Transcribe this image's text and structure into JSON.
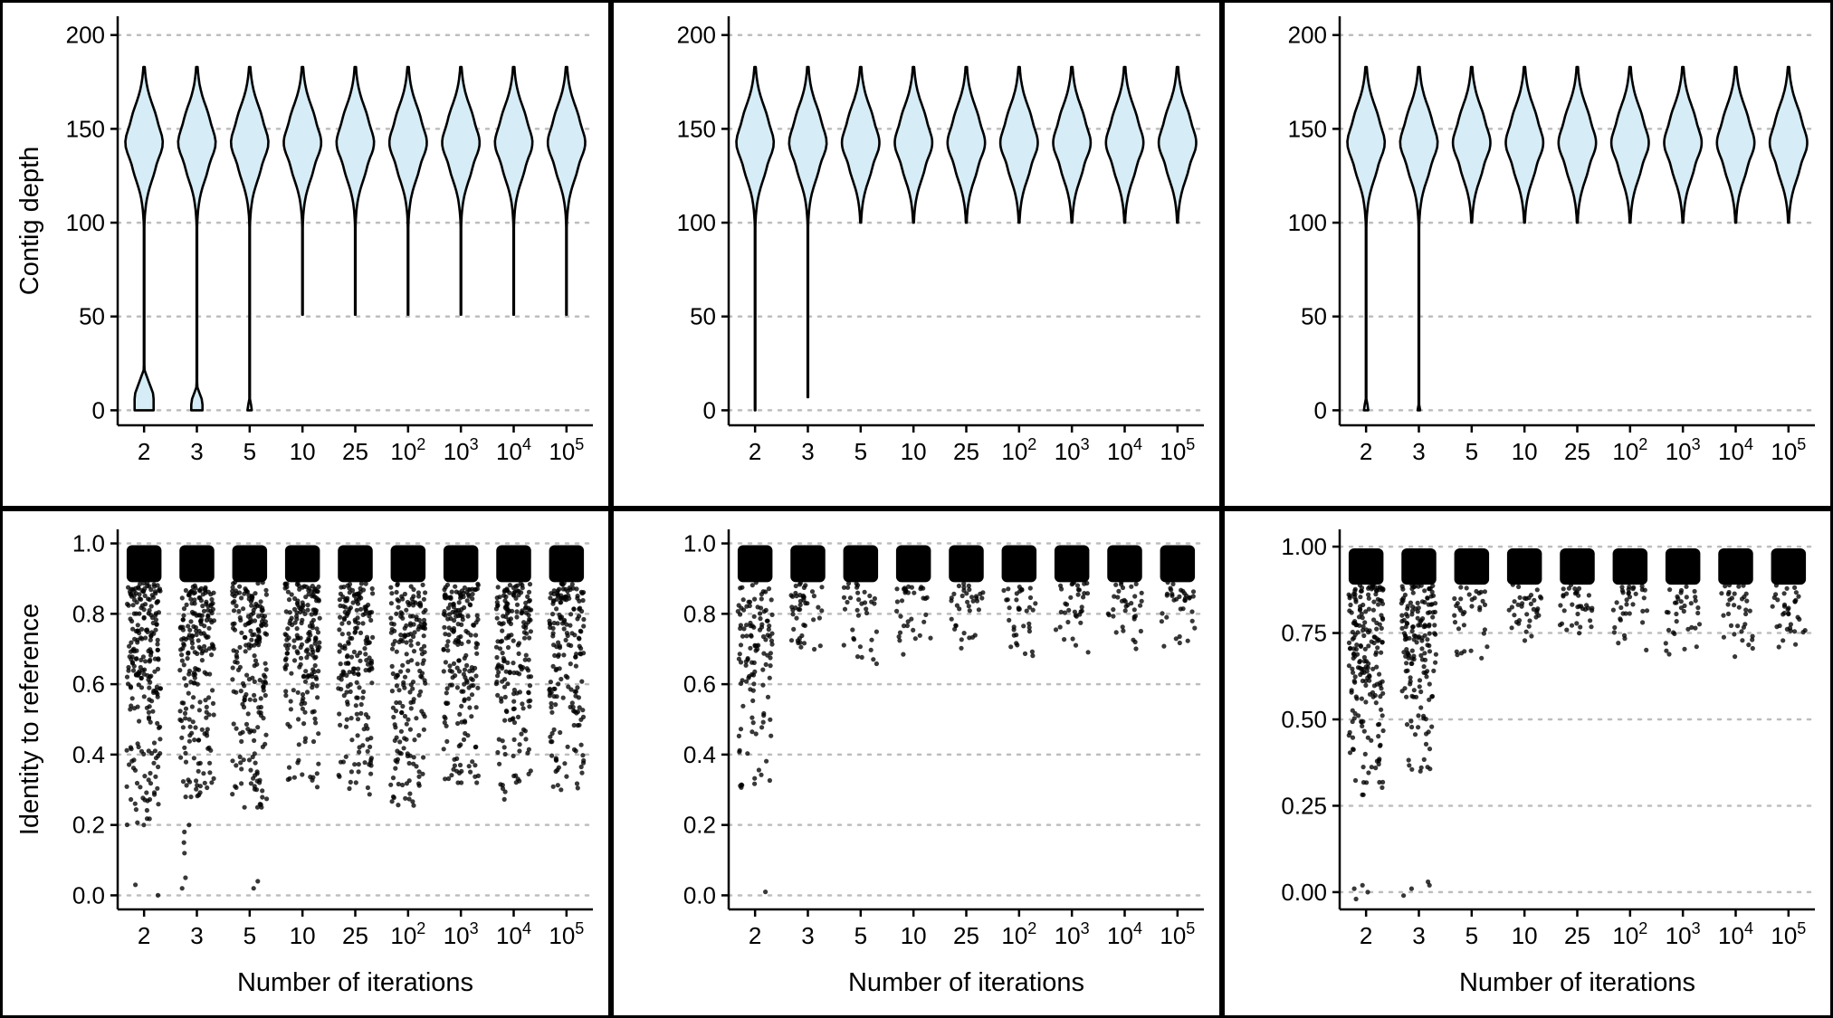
{
  "chart_data": [
    {
      "panel": "top-left",
      "type": "violin",
      "categories": [
        "2",
        "3",
        "5",
        "10",
        "25",
        "10^2",
        "10^3",
        "10^4",
        "10^5"
      ],
      "ylabel": "Contig depth",
      "xlabel": "",
      "ylim": [
        -8,
        210
      ],
      "yticks": [
        0,
        50,
        100,
        150,
        200
      ],
      "series": [
        {
          "name": "2",
          "min": 0,
          "max": 183,
          "low_lobe_top": 22
        },
        {
          "name": "3",
          "min": 0,
          "max": 183,
          "low_lobe_top": 13
        },
        {
          "name": "5",
          "min": 0,
          "max": 183,
          "low_lobe_top": 5
        },
        {
          "name": "10",
          "min": 51,
          "max": 183
        },
        {
          "name": "25",
          "min": 51,
          "max": 183
        },
        {
          "name": "10^2",
          "min": 51,
          "max": 183
        },
        {
          "name": "10^3",
          "min": 51,
          "max": 183
        },
        {
          "name": "10^4",
          "min": 51,
          "max": 183
        },
        {
          "name": "10^5",
          "min": 51,
          "max": 183
        }
      ]
    },
    {
      "panel": "top-middle",
      "type": "violin",
      "categories": [
        "2",
        "3",
        "5",
        "10",
        "25",
        "10^2",
        "10^3",
        "10^4",
        "10^5"
      ],
      "ylabel": "",
      "xlabel": "",
      "ylim": [
        -8,
        210
      ],
      "yticks": [
        0,
        50,
        100,
        150,
        200
      ],
      "series": [
        {
          "name": "2",
          "min": 0,
          "max": 183
        },
        {
          "name": "3",
          "min": 7,
          "max": 183
        },
        {
          "name": "5",
          "min": 100,
          "max": 183
        },
        {
          "name": "10",
          "min": 100,
          "max": 183
        },
        {
          "name": "25",
          "min": 100,
          "max": 183
        },
        {
          "name": "10^2",
          "min": 100,
          "max": 183
        },
        {
          "name": "10^3",
          "min": 100,
          "max": 183
        },
        {
          "name": "10^4",
          "min": 100,
          "max": 183
        },
        {
          "name": "10^5",
          "min": 100,
          "max": 183
        }
      ]
    },
    {
      "panel": "top-right",
      "type": "violin",
      "categories": [
        "2",
        "3",
        "5",
        "10",
        "25",
        "10^2",
        "10^3",
        "10^4",
        "10^5"
      ],
      "ylabel": "",
      "xlabel": "",
      "ylim": [
        -8,
        210
      ],
      "yticks": [
        0,
        50,
        100,
        150,
        200
      ],
      "series": [
        {
          "name": "2",
          "min": 0,
          "max": 183,
          "low_lobe_top": 5
        },
        {
          "name": "3",
          "min": 0,
          "max": 183,
          "low_lobe_top": 3
        },
        {
          "name": "5",
          "min": 100,
          "max": 183
        },
        {
          "name": "10",
          "min": 100,
          "max": 183
        },
        {
          "name": "25",
          "min": 100,
          "max": 183
        },
        {
          "name": "10^2",
          "min": 100,
          "max": 183
        },
        {
          "name": "10^3",
          "min": 100,
          "max": 183
        },
        {
          "name": "10^4",
          "min": 100,
          "max": 183
        },
        {
          "name": "10^5",
          "min": 100,
          "max": 183
        }
      ]
    },
    {
      "panel": "bottom-left",
      "type": "scatter",
      "categories": [
        "2",
        "3",
        "5",
        "10",
        "25",
        "10^2",
        "10^3",
        "10^4",
        "10^5"
      ],
      "ylabel": "Identity to reference",
      "xlabel": "Number of iterations",
      "ylim": [
        -0.04,
        1.04
      ],
      "yticks": [
        0.0,
        0.2,
        0.4,
        0.6,
        0.8,
        1.0
      ],
      "ytick_labels": [
        "0.0",
        "0.2",
        "0.4",
        "0.6",
        "0.8",
        "1.0"
      ],
      "series": [
        {
          "name": "2",
          "dense_min": 0.89,
          "tail_min": 0.2,
          "tail_count": 230,
          "outliers": [
            0.0,
            0.03
          ]
        },
        {
          "name": "3",
          "dense_min": 0.89,
          "tail_min": 0.28,
          "tail_count": 210,
          "outliers": [
            0.02,
            0.05,
            0.12,
            0.15,
            0.18,
            0.2
          ]
        },
        {
          "name": "5",
          "dense_min": 0.89,
          "tail_min": 0.25,
          "tail_count": 200,
          "outliers": [
            0.02,
            0.04
          ]
        },
        {
          "name": "10",
          "dense_min": 0.89,
          "tail_min": 0.28,
          "tail_count": 190,
          "outliers": []
        },
        {
          "name": "25",
          "dense_min": 0.89,
          "tail_min": 0.27,
          "tail_count": 190,
          "outliers": []
        },
        {
          "name": "10^2",
          "dense_min": 0.89,
          "tail_min": 0.25,
          "tail_count": 190,
          "outliers": []
        },
        {
          "name": "10^3",
          "dense_min": 0.89,
          "tail_min": 0.32,
          "tail_count": 190,
          "outliers": []
        },
        {
          "name": "10^4",
          "dense_min": 0.89,
          "tail_min": 0.27,
          "tail_count": 190,
          "outliers": []
        },
        {
          "name": "10^5",
          "dense_min": 0.89,
          "tail_min": 0.3,
          "tail_count": 180,
          "outliers": []
        }
      ]
    },
    {
      "panel": "bottom-middle",
      "type": "scatter",
      "categories": [
        "2",
        "3",
        "5",
        "10",
        "25",
        "10^2",
        "10^3",
        "10^4",
        "10^5"
      ],
      "ylabel": "",
      "xlabel": "Number of iterations",
      "ylim": [
        -0.04,
        1.04
      ],
      "yticks": [
        0.0,
        0.2,
        0.4,
        0.6,
        0.8,
        1.0
      ],
      "ytick_labels": [
        "0.0",
        "0.2",
        "0.4",
        "0.6",
        "0.8",
        "1.0"
      ],
      "series": [
        {
          "name": "2",
          "dense_min": 0.89,
          "tail_min": 0.3,
          "tail_count": 120,
          "outliers": [
            0.01
          ]
        },
        {
          "name": "3",
          "dense_min": 0.89,
          "tail_min": 0.69,
          "tail_count": 45,
          "outliers": []
        },
        {
          "name": "5",
          "dense_min": 0.89,
          "tail_min": 0.65,
          "tail_count": 35,
          "outliers": []
        },
        {
          "name": "10",
          "dense_min": 0.89,
          "tail_min": 0.68,
          "tail_count": 35,
          "outliers": []
        },
        {
          "name": "25",
          "dense_min": 0.89,
          "tail_min": 0.7,
          "tail_count": 35,
          "outliers": []
        },
        {
          "name": "10^2",
          "dense_min": 0.89,
          "tail_min": 0.66,
          "tail_count": 35,
          "outliers": []
        },
        {
          "name": "10^3",
          "dense_min": 0.89,
          "tail_min": 0.68,
          "tail_count": 35,
          "outliers": []
        },
        {
          "name": "10^4",
          "dense_min": 0.89,
          "tail_min": 0.7,
          "tail_count": 35,
          "outliers": []
        },
        {
          "name": "10^5",
          "dense_min": 0.89,
          "tail_min": 0.66,
          "tail_count": 35,
          "outliers": []
        }
      ]
    },
    {
      "panel": "bottom-right",
      "type": "scatter",
      "categories": [
        "2",
        "3",
        "5",
        "10",
        "25",
        "10^2",
        "10^3",
        "10^4",
        "10^5"
      ],
      "ylabel": "",
      "xlabel": "Number of iterations",
      "ylim": [
        -0.05,
        1.05
      ],
      "yticks": [
        0.0,
        0.25,
        0.5,
        0.75,
        1.0
      ],
      "ytick_labels": [
        "0.00",
        "0.25",
        "0.50",
        "0.75",
        "1.00"
      ],
      "series": [
        {
          "name": "2",
          "dense_min": 0.89,
          "tail_min": 0.28,
          "tail_count": 200,
          "outliers": [
            0.0,
            -0.02,
            0.01,
            0.02
          ]
        },
        {
          "name": "3",
          "dense_min": 0.89,
          "tail_min": 0.35,
          "tail_count": 160,
          "outliers": [
            0.01,
            0.02,
            0.03,
            -0.01
          ]
        },
        {
          "name": "5",
          "dense_min": 0.89,
          "tail_min": 0.67,
          "tail_count": 35,
          "outliers": []
        },
        {
          "name": "10",
          "dense_min": 0.89,
          "tail_min": 0.72,
          "tail_count": 35,
          "outliers": []
        },
        {
          "name": "25",
          "dense_min": 0.89,
          "tail_min": 0.71,
          "tail_count": 35,
          "outliers": []
        },
        {
          "name": "10^2",
          "dense_min": 0.89,
          "tail_min": 0.7,
          "tail_count": 35,
          "outliers": []
        },
        {
          "name": "10^3",
          "dense_min": 0.89,
          "tail_min": 0.68,
          "tail_count": 35,
          "outliers": []
        },
        {
          "name": "10^4",
          "dense_min": 0.89,
          "tail_min": 0.68,
          "tail_count": 35,
          "outliers": []
        },
        {
          "name": "10^5",
          "dense_min": 0.89,
          "tail_min": 0.69,
          "tail_count": 35,
          "outliers": []
        }
      ]
    }
  ],
  "style": {
    "violin_fill": "#d6ecf6",
    "violin_stroke": "#000000",
    "point_color": "#000000",
    "grid_color": "#bdbdbd",
    "frame_color": "#000000"
  }
}
